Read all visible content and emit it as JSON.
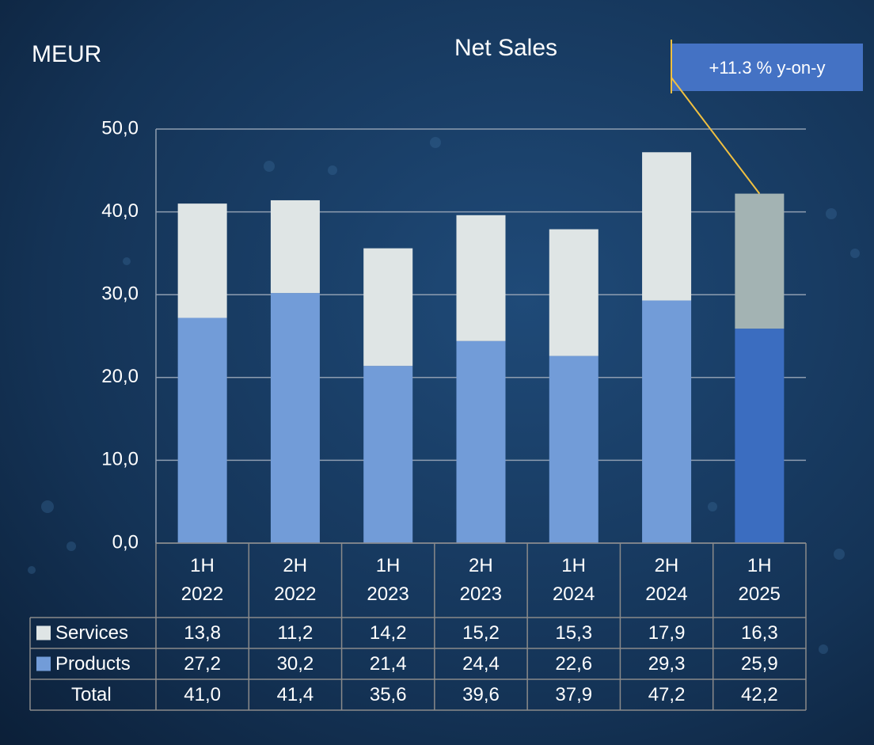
{
  "chart_data": {
    "type": "stacked_bar",
    "title": "Net Sales",
    "unit_label": "MEUR",
    "annotation": "+11.3 % y-on-y",
    "categories": [
      "1H 2022",
      "2H 2022",
      "1H 2023",
      "2H 2023",
      "1H 2024",
      "2H 2024",
      "1H 2025"
    ],
    "series": [
      {
        "name": "Services",
        "color": "#dfe5e5",
        "highlight_color": "#a3b3b3",
        "values": [
          13.8,
          11.2,
          14.2,
          15.2,
          15.3,
          17.9,
          16.3
        ],
        "value_labels": [
          "13,8",
          "11,2",
          "14,2",
          "15,2",
          "15,3",
          "17,9",
          "16,3"
        ]
      },
      {
        "name": "Products",
        "color": "#729cd8",
        "highlight_color": "#3b6dc0",
        "values": [
          27.2,
          30.2,
          21.4,
          24.4,
          22.6,
          29.3,
          25.9
        ],
        "value_labels": [
          "27,2",
          "30,2",
          "21,4",
          "24,4",
          "22,6",
          "29,3",
          "25,9"
        ]
      }
    ],
    "highlight_index": 6,
    "total_name": "Total",
    "totals": [
      41.0,
      41.4,
      35.6,
      39.6,
      37.9,
      47.2,
      42.2
    ],
    "total_labels": [
      "41,0",
      "41,4",
      "35,6",
      "39,6",
      "37,9",
      "47,2",
      "42,2"
    ],
    "ylim": [
      0,
      50
    ],
    "yticks": [
      {
        "value": 0,
        "label": "0,0"
      },
      {
        "value": 10,
        "label": "10,0"
      },
      {
        "value": 20,
        "label": "20,0"
      },
      {
        "value": 30,
        "label": "30,0"
      },
      {
        "value": 40,
        "label": "40,0"
      },
      {
        "value": 50,
        "label": "50,0"
      }
    ],
    "grid": true
  }
}
